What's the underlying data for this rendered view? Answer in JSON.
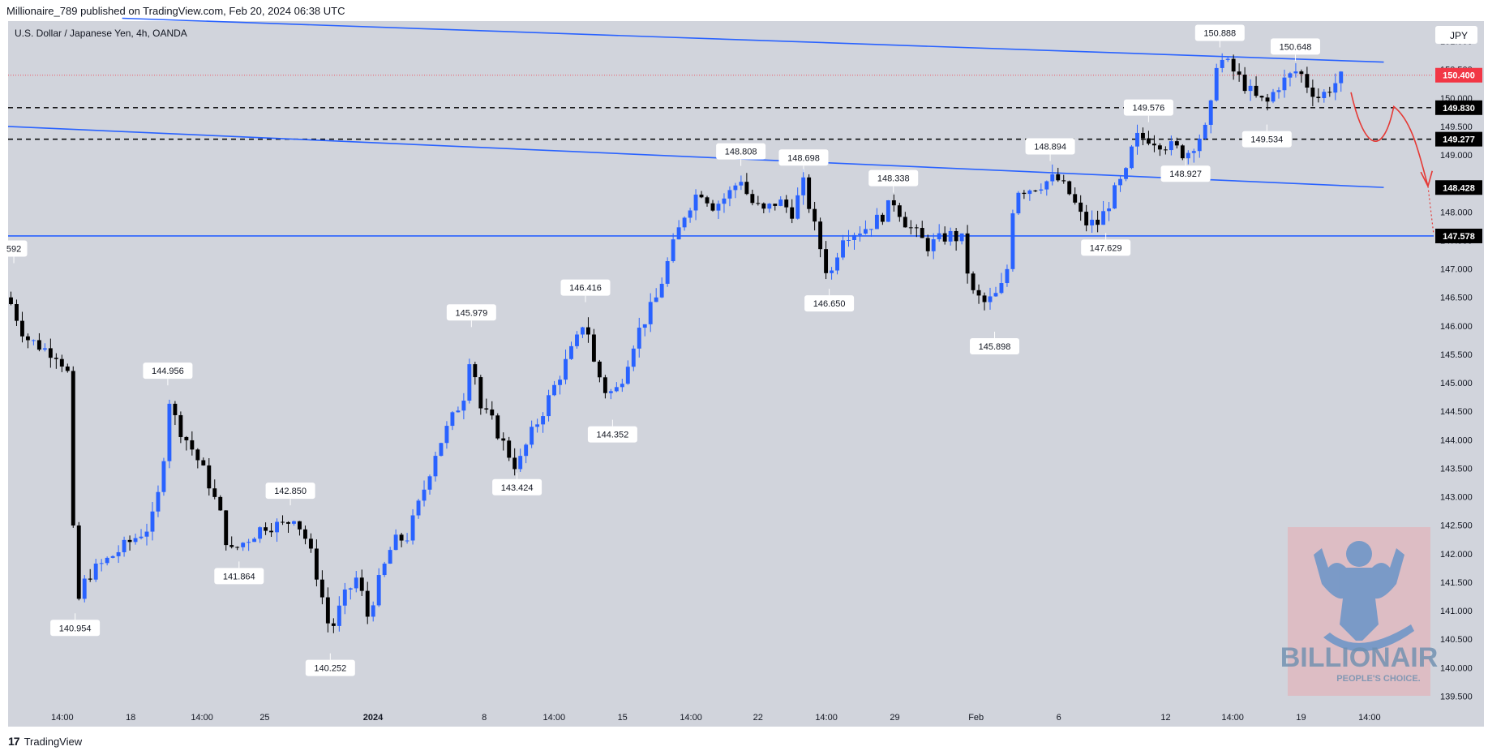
{
  "header": {
    "publisher": "Millionaire_789",
    "published_on": "published on TradingView.com, Feb 20, 2024 06:38 UTC"
  },
  "symbol": {
    "title": "U.S. Dollar / Japanese Yen, 4h, OANDA",
    "currency": "JPY"
  },
  "footer": {
    "brand": "TradingView"
  },
  "watermark": {
    "title": "BILLIONAIR",
    "subtitle": "PEOPLE'S CHOICE."
  },
  "colors": {
    "background": "#d1d4dc",
    "up": "#2962ff",
    "down": "#000000",
    "trendline": "#2962ff",
    "price_line": "#f23645",
    "projection": "#e53935"
  },
  "chart_data": {
    "type": "candlestick",
    "title": "U.S. Dollar / Japanese Yen, 4h, OANDA",
    "y_axis": {
      "ticks": [
        139.5,
        140.0,
        140.5,
        141.0,
        141.5,
        142.0,
        142.5,
        143.0,
        143.5,
        144.0,
        144.5,
        145.0,
        145.5,
        146.0,
        146.5,
        147.0,
        147.5,
        148.0,
        148.5,
        149.0,
        149.5,
        150.0,
        150.5,
        151.0
      ],
      "range": [
        139.25,
        151.35
      ],
      "side": "right"
    },
    "x_axis": {
      "labels": [
        {
          "label": "14:00",
          "x": 0.038
        },
        {
          "label": "18",
          "x": 0.086
        },
        {
          "label": "14:00",
          "x": 0.136
        },
        {
          "label": "25",
          "x": 0.18
        },
        {
          "label": "2024",
          "x": 0.256,
          "bold": true
        },
        {
          "label": "8",
          "x": 0.334
        },
        {
          "label": "14:00",
          "x": 0.383
        },
        {
          "label": "15",
          "x": 0.431
        },
        {
          "label": "14:00",
          "x": 0.479
        },
        {
          "label": "22",
          "x": 0.526
        },
        {
          "label": "14:00",
          "x": 0.574
        },
        {
          "label": "29",
          "x": 0.622
        },
        {
          "label": "Feb",
          "x": 0.679
        },
        {
          "label": "6",
          "x": 0.737
        },
        {
          "label": "12",
          "x": 0.812
        },
        {
          "label": "14:00",
          "x": 0.859
        },
        {
          "label": "19",
          "x": 0.907
        },
        {
          "label": "14:00",
          "x": 0.955
        }
      ]
    },
    "swing_labels": [
      {
        "label": "592",
        "x": 0.004,
        "price": 147.1,
        "pos": "above"
      },
      {
        "label": "140.954",
        "x": 0.047,
        "price": 140.954,
        "pos": "below"
      },
      {
        "label": "144.956",
        "x": 0.112,
        "price": 144.956,
        "pos": "above"
      },
      {
        "label": "141.864",
        "x": 0.162,
        "price": 141.864,
        "pos": "below"
      },
      {
        "label": "142.850",
        "x": 0.198,
        "price": 142.85,
        "pos": "above"
      },
      {
        "label": "140.252",
        "x": 0.226,
        "price": 140.252,
        "pos": "below"
      },
      {
        "label": "145.979",
        "x": 0.325,
        "price": 145.979,
        "pos": "above"
      },
      {
        "label": "143.424",
        "x": 0.357,
        "price": 143.424,
        "pos": "below"
      },
      {
        "label": "146.416",
        "x": 0.405,
        "price": 146.416,
        "pos": "above"
      },
      {
        "label": "144.352",
        "x": 0.424,
        "price": 144.352,
        "pos": "below"
      },
      {
        "label": "148.808",
        "x": 0.514,
        "price": 148.808,
        "pos": "above"
      },
      {
        "label": "148.698",
        "x": 0.558,
        "price": 148.698,
        "pos": "above"
      },
      {
        "label": "146.650",
        "x": 0.576,
        "price": 146.65,
        "pos": "below"
      },
      {
        "label": "148.338",
        "x": 0.621,
        "price": 148.338,
        "pos": "above"
      },
      {
        "label": "145.898",
        "x": 0.692,
        "price": 145.898,
        "pos": "below"
      },
      {
        "label": "148.894",
        "x": 0.731,
        "price": 148.894,
        "pos": "above"
      },
      {
        "label": "147.629",
        "x": 0.77,
        "price": 147.629,
        "pos": "below"
      },
      {
        "label": "149.576",
        "x": 0.8,
        "price": 149.576,
        "pos": "above"
      },
      {
        "label": "148.927",
        "x": 0.826,
        "price": 148.927,
        "pos": "below"
      },
      {
        "label": "150.888",
        "x": 0.85,
        "price": 150.888,
        "pos": "above"
      },
      {
        "label": "149.534",
        "x": 0.883,
        "price": 149.534,
        "pos": "below"
      },
      {
        "label": "150.648",
        "x": 0.903,
        "price": 150.648,
        "pos": "above"
      }
    ],
    "levels": [
      {
        "label": "149.830",
        "price": 149.83,
        "style": "dashed"
      },
      {
        "label": "149.277",
        "price": 149.277,
        "style": "dashed"
      },
      {
        "label": "148.428",
        "price": 148.428,
        "style": "trend-end"
      },
      {
        "label": "147.578",
        "price": 147.578,
        "style": "solid"
      }
    ],
    "current_price": {
      "label": "150.400",
      "price": 150.4
    },
    "trendlines": [
      {
        "x1": 0.08,
        "p1": 151.4,
        "x2": 0.965,
        "p2": 150.63
      },
      {
        "x1": 0.0,
        "p1": 149.5,
        "x2": 0.965,
        "p2": 148.43
      }
    ],
    "waypoints": [
      [
        0.0,
        146.5
      ],
      [
        0.012,
        145.8
      ],
      [
        0.025,
        145.6
      ],
      [
        0.035,
        145.5
      ],
      [
        0.043,
        145.1
      ],
      [
        0.047,
        141.0
      ],
      [
        0.055,
        141.6
      ],
      [
        0.07,
        141.9
      ],
      [
        0.085,
        142.2
      ],
      [
        0.1,
        142.5
      ],
      [
        0.108,
        143.3
      ],
      [
        0.112,
        144.8
      ],
      [
        0.118,
        144.3
      ],
      [
        0.13,
        143.8
      ],
      [
        0.14,
        143.3
      ],
      [
        0.15,
        142.6
      ],
      [
        0.155,
        142.0
      ],
      [
        0.165,
        142.2
      ],
      [
        0.18,
        142.5
      ],
      [
        0.195,
        142.5
      ],
      [
        0.2,
        142.7
      ],
      [
        0.21,
        142.2
      ],
      [
        0.218,
        141.5
      ],
      [
        0.226,
        140.6
      ],
      [
        0.235,
        141.2
      ],
      [
        0.245,
        141.6
      ],
      [
        0.252,
        140.9
      ],
      [
        0.26,
        141.5
      ],
      [
        0.27,
        142.2
      ],
      [
        0.28,
        142.3
      ],
      [
        0.29,
        143.0
      ],
      [
        0.3,
        143.8
      ],
      [
        0.31,
        144.3
      ],
      [
        0.32,
        144.8
      ],
      [
        0.325,
        145.7
      ],
      [
        0.33,
        144.6
      ],
      [
        0.34,
        144.3
      ],
      [
        0.35,
        143.8
      ],
      [
        0.357,
        143.5
      ],
      [
        0.365,
        144.0
      ],
      [
        0.375,
        144.5
      ],
      [
        0.39,
        145.3
      ],
      [
        0.4,
        145.8
      ],
      [
        0.405,
        146.2
      ],
      [
        0.41,
        145.4
      ],
      [
        0.42,
        144.8
      ],
      [
        0.428,
        144.9
      ],
      [
        0.44,
        145.8
      ],
      [
        0.455,
        146.5
      ],
      [
        0.465,
        147.3
      ],
      [
        0.475,
        148.0
      ],
      [
        0.485,
        148.4
      ],
      [
        0.495,
        148.1
      ],
      [
        0.505,
        148.3
      ],
      [
        0.514,
        148.6
      ],
      [
        0.52,
        148.2
      ],
      [
        0.53,
        148.0
      ],
      [
        0.54,
        148.2
      ],
      [
        0.55,
        148.0
      ],
      [
        0.558,
        148.5
      ],
      [
        0.565,
        147.8
      ],
      [
        0.576,
        146.8
      ],
      [
        0.585,
        147.6
      ],
      [
        0.6,
        147.7
      ],
      [
        0.612,
        147.9
      ],
      [
        0.621,
        148.2
      ],
      [
        0.63,
        147.8
      ],
      [
        0.645,
        147.4
      ],
      [
        0.66,
        147.6
      ],
      [
        0.67,
        147.5
      ],
      [
        0.675,
        146.6
      ],
      [
        0.685,
        146.4
      ],
      [
        0.692,
        146.5
      ],
      [
        0.7,
        146.8
      ],
      [
        0.706,
        148.4
      ],
      [
        0.715,
        148.4
      ],
      [
        0.725,
        148.5
      ],
      [
        0.735,
        148.6
      ],
      [
        0.745,
        148.3
      ],
      [
        0.755,
        147.8
      ],
      [
        0.765,
        147.8
      ],
      [
        0.775,
        148.3
      ],
      [
        0.785,
        148.7
      ],
      [
        0.79,
        149.3
      ],
      [
        0.8,
        149.3
      ],
      [
        0.81,
        149.2
      ],
      [
        0.82,
        149.1
      ],
      [
        0.826,
        149.0
      ],
      [
        0.835,
        149.3
      ],
      [
        0.842,
        149.5
      ],
      [
        0.848,
        150.7
      ],
      [
        0.855,
        150.6
      ],
      [
        0.865,
        150.3
      ],
      [
        0.875,
        150.0
      ],
      [
        0.883,
        149.9
      ],
      [
        0.89,
        150.2
      ],
      [
        0.9,
        150.4
      ],
      [
        0.905,
        150.5
      ],
      [
        0.912,
        150.2
      ],
      [
        0.92,
        150.0
      ],
      [
        0.928,
        150.2
      ],
      [
        0.937,
        150.4
      ]
    ]
  }
}
